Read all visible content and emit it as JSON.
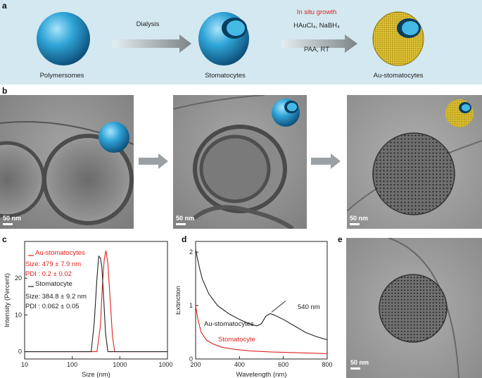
{
  "panel_a": {
    "letter": "a",
    "items": [
      {
        "label": "Polymersomes"
      },
      {
        "label": "Stomatocytes"
      },
      {
        "label": "Au-stomatocytes"
      }
    ],
    "step1": "Dialysis",
    "step2_highlight": "In situ growth",
    "step2_reagents": "HAuCl₄, NaBH₄",
    "step2_conditions": "PAA, RT",
    "colors": {
      "background": "#d3e8f0",
      "highlight": "#e0221e",
      "sphere": "#2a9bd0",
      "gold": "#c9b22a"
    }
  },
  "panel_b": {
    "letter": "b",
    "scalebars": [
      "50 nm",
      "50 nm",
      "50 nm"
    ]
  },
  "panel_e": {
    "letter": "e",
    "scalebar": "50 nm"
  },
  "panel_c": {
    "letter": "c",
    "legend": [
      {
        "name": "Au-stomatocytes",
        "color": "#e0221e",
        "size": "Size:  479 ± 7.9 nm",
        "pdi": "PDI :  0.2 ± 0.02"
      },
      {
        "name": "Stomatocyte",
        "color": "#222222",
        "size": "Size: 384.8 ± 9.2 nm",
        "pdi": "PDI : 0.062 ± 0.05"
      }
    ]
  },
  "panel_d": {
    "letter": "d",
    "peak_label": "540 nm",
    "au_label": "Au-stomatocytes",
    "sto_label": "Stomatocyte"
  },
  "chart_data": [
    {
      "type": "line",
      "xlabel": "Size (nm)",
      "ylabel": "Intensity (Percent)",
      "xscale": "log",
      "xlim": [
        10,
        10000
      ],
      "ylim": [
        -2,
        30
      ],
      "xticks": [
        "10",
        "100",
        "1000",
        "10000"
      ],
      "yticks": [
        "0",
        "10",
        "20"
      ],
      "series": [
        {
          "name": "Au-stomatocytes",
          "color": "#e0221e",
          "x": [
            10,
            330,
            390,
            430,
            470,
            510,
            560,
            620,
            700,
            780,
            10000
          ],
          "y": [
            0,
            0,
            7,
            18,
            25,
            27.5,
            24,
            15,
            4,
            0,
            0
          ]
        },
        {
          "name": "Stomatocyte",
          "color": "#222222",
          "x": [
            10,
            250,
            290,
            330,
            360,
            390,
            420,
            460,
            500,
            560,
            10000
          ],
          "y": [
            0,
            0,
            8,
            20,
            26,
            25.5,
            23,
            14,
            5,
            0,
            0
          ]
        }
      ]
    },
    {
      "type": "line",
      "xlabel": "Wavelength (nm)",
      "ylabel": "Extinction",
      "xlim": [
        200,
        800
      ],
      "ylim": [
        0,
        2.2
      ],
      "xticks": [
        "200",
        "400",
        "600",
        "800"
      ],
      "yticks": [
        "0",
        "1",
        "2"
      ],
      "series": [
        {
          "name": "Au-stomatocytes",
          "color": "#222222",
          "x": [
            200,
            215,
            230,
            260,
            300,
            350,
            400,
            450,
            480,
            500,
            520,
            540,
            560,
            600,
            650,
            700,
            750,
            800
          ],
          "y": [
            2.05,
            1.75,
            1.5,
            1.22,
            1.0,
            0.85,
            0.74,
            0.65,
            0.62,
            0.66,
            0.8,
            0.85,
            0.82,
            0.74,
            0.62,
            0.5,
            0.42,
            0.36
          ]
        },
        {
          "name": "Stomatocyte",
          "color": "#e0221e",
          "x": [
            200,
            210,
            225,
            250,
            280,
            320,
            380,
            450,
            550,
            650,
            800
          ],
          "y": [
            1.0,
            0.75,
            0.5,
            0.35,
            0.28,
            0.22,
            0.18,
            0.15,
            0.13,
            0.12,
            0.1
          ]
        }
      ]
    }
  ]
}
